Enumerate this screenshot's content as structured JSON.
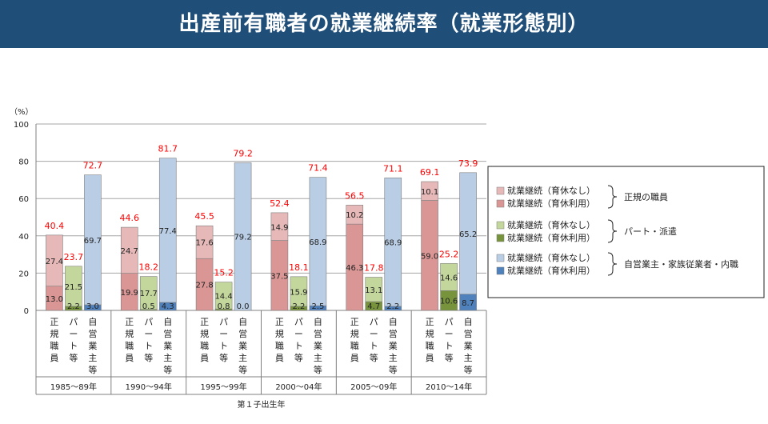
{
  "header": {
    "title": "出産前有職者の就業継続率（就業形態別）"
  },
  "chart_data": {
    "type": "bar",
    "stacked": true,
    "y_unit": "（%）",
    "ylim": [
      0,
      100
    ],
    "yticks": [
      0,
      20,
      40,
      60,
      80,
      100
    ],
    "grid": true,
    "xlabel": "第１子出生年",
    "periods": [
      "1985～89年",
      "1990～94年",
      "1995～99年",
      "2000～04年",
      "2005～09年",
      "2010～14年"
    ],
    "bar_labels": [
      "正規職員",
      "パート等",
      "自営業主等"
    ],
    "groups": [
      {
        "name": "正規の職員",
        "series": [
          {
            "name": "就業継続（育休なし）",
            "color": "#e6b9b8",
            "values": [
              27.4,
              24.7,
              17.6,
              14.9,
              10.2,
              10.1
            ]
          },
          {
            "name": "就業継続（育休利用）",
            "color": "#d99694",
            "values": [
              13.0,
              19.9,
              27.8,
              37.5,
              46.3,
              59.0
            ]
          }
        ],
        "totals": [
          40.4,
          44.6,
          45.5,
          52.4,
          56.5,
          69.1
        ]
      },
      {
        "name": "パート・派遣",
        "series": [
          {
            "name": "就業継続（育休なし）",
            "color": "#c3d69b",
            "values": [
              21.5,
              17.7,
              14.4,
              15.9,
              13.1,
              14.6
            ]
          },
          {
            "name": "就業継続（育休利用）",
            "color": "#77933c",
            "values": [
              2.2,
              0.5,
              0.8,
              2.2,
              4.7,
              10.6
            ]
          }
        ],
        "totals": [
          23.7,
          18.2,
          15.2,
          18.1,
          17.8,
          25.2
        ]
      },
      {
        "name": "自営業主・家族従業者・内職",
        "series": [
          {
            "name": "就業継続（育休なし）",
            "color": "#b9cde5",
            "values": [
              69.7,
              77.4,
              79.2,
              68.9,
              68.9,
              65.2
            ]
          },
          {
            "name": "就業継続（育休利用）",
            "color": "#4f81bd",
            "values": [
              3.0,
              4.3,
              0.0,
              2.5,
              2.2,
              8.7
            ]
          }
        ],
        "totals": [
          72.7,
          81.7,
          79.2,
          71.4,
          71.1,
          73.9
        ]
      }
    ],
    "total_label_color": "#ff0000"
  }
}
